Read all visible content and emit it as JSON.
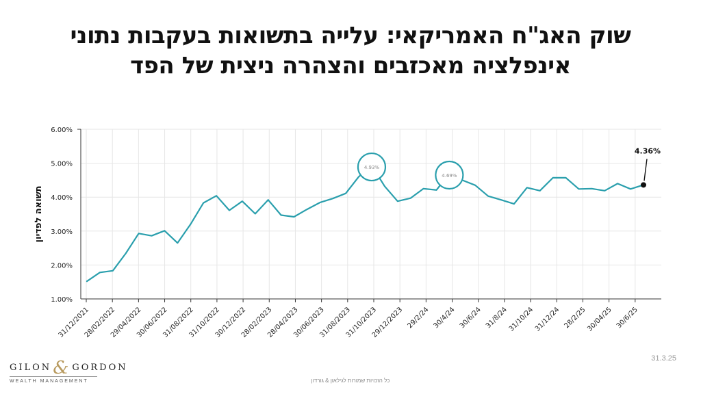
{
  "title": {
    "line1": "שוק האג\"ח האמריקאי: עלייה בתשואות בעקבות נתוני",
    "line2": "אינפלציה מאכזבים והצהרה ניצית של הפד"
  },
  "logo": {
    "left_word": "GILON",
    "ampersand": "&",
    "right_word": "GORDON",
    "subtitle": "WEALTH MANAGEMENT"
  },
  "footer_text": "כל הזכויות שמורות לגילאון & גורדון",
  "date_stamp": "31.3.25",
  "colors": {
    "line": "#2a9fad",
    "marker": "#111111",
    "grid": "#e6e6e6"
  },
  "chart_data": {
    "type": "line",
    "ylabel": "תשואה לפדיון",
    "xlabel": "",
    "ylim": [
      0.01,
      0.06
    ],
    "y_ticks": [
      "6.00%",
      "5.00%",
      "4.00%",
      "3.00%",
      "2.00%",
      "1.00%"
    ],
    "x_ticks": [
      "31/12/2021",
      "28/02/2022",
      "29/04/2022",
      "30/06/2022",
      "31/08/2022",
      "31/10/2022",
      "30/12/2022",
      "28/02/2023",
      "28/04/2023",
      "30/06/2023",
      "31/08/2023",
      "31/10/2023",
      "29/12/2023",
      "29/2/24",
      "30/4/24",
      "30/6/24",
      "31/8/24",
      "31/10/24",
      "31/12/24",
      "28/2/25",
      "30/04/25",
      "30/6/25"
    ],
    "grid": true,
    "series": [
      {
        "values": [
          0.0152,
          0.0178,
          0.0183,
          0.0234,
          0.0293,
          0.0286,
          0.0301,
          0.0265,
          0.032,
          0.0383,
          0.0404,
          0.0361,
          0.0388,
          0.0351,
          0.0392,
          0.0347,
          0.0342,
          0.0364,
          0.0384,
          0.0396,
          0.0411,
          0.046,
          0.0493,
          0.0432,
          0.0388,
          0.0397,
          0.0425,
          0.0421,
          0.0469,
          0.045,
          0.0435,
          0.0403,
          0.0392,
          0.038,
          0.0428,
          0.0419,
          0.0457,
          0.0457,
          0.0424,
          0.0425,
          0.0419,
          0.044,
          0.0424,
          0.0436
        ]
      }
    ],
    "annotations": [
      {
        "index": 22,
        "label": "4.93%",
        "style": "circle"
      },
      {
        "index": 28,
        "label": "4.69%",
        "style": "circle"
      },
      {
        "index": 43,
        "label": "4.36%",
        "style": "marker"
      }
    ]
  }
}
